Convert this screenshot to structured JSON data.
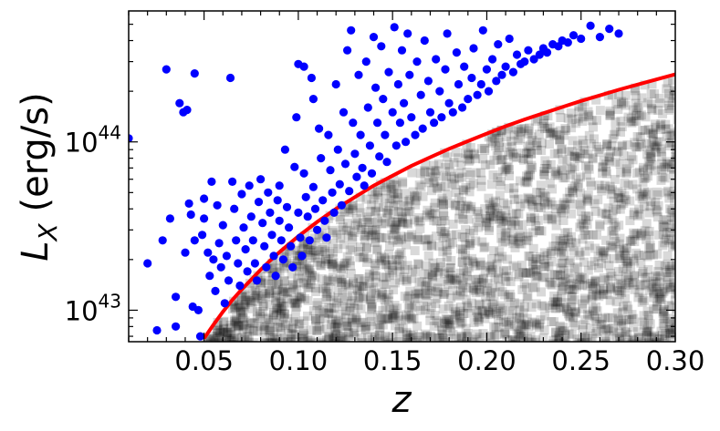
{
  "chart_data": {
    "type": "scatter",
    "title": "",
    "xlabel": "z",
    "ylabel": "L_X (erg/s)",
    "xlim": [
      0.01,
      0.3
    ],
    "ylim": [
      6.5e+42,
      6e+44
    ],
    "yscale": "log",
    "grid": false,
    "legend": "none",
    "x_ticks": [
      0.05,
      0.1,
      0.15,
      0.2,
      0.25,
      0.3
    ],
    "x_tick_labels": [
      "0.05",
      "0.10",
      "0.15",
      "0.20",
      "0.25",
      "0.30"
    ],
    "y_ticks": [
      1e+43,
      1e+44
    ],
    "y_tick_labels": [
      {
        "base": "10",
        "exp": "43"
      },
      {
        "base": "10",
        "exp": "44"
      }
    ],
    "series": [
      {
        "marker": "circle",
        "color": "#0000ff",
        "points": [
          [
            0.01,
            1.05e+44
          ],
          [
            0.02,
            1.9e+43
          ],
          [
            0.025,
            7.6e+42
          ],
          [
            0.028,
            2.6e+43
          ],
          [
            0.03,
            2.7e+44
          ],
          [
            0.032,
            3.5e+43
          ],
          [
            0.035,
            1.2e+43
          ],
          [
            0.035,
            8e+42
          ],
          [
            0.037,
            1.7e+44
          ],
          [
            0.039,
            1.5e+44
          ],
          [
            0.04,
            2.2e+43
          ],
          [
            0.041,
            1.55e+44
          ],
          [
            0.042,
            4.3e+43
          ],
          [
            0.043,
            3.7e+43
          ],
          [
            0.044,
            1.05e+43
          ],
          [
            0.045,
            2.55e+44
          ],
          [
            0.045,
            2.6e+43
          ],
          [
            0.047,
            1e+43
          ],
          [
            0.048,
            7e+42
          ],
          [
            0.049,
            2.8e+43
          ],
          [
            0.05,
            4.6e+43
          ],
          [
            0.05,
            3.5e+43
          ],
          [
            0.052,
            2.2e+43
          ],
          [
            0.053,
            1.6e+43
          ],
          [
            0.054,
            5.8e+43
          ],
          [
            0.055,
            2e+43
          ],
          [
            0.056,
            1.3e+43
          ],
          [
            0.057,
            4.2e+43
          ],
          [
            0.058,
            2.5e+43
          ],
          [
            0.059,
            1.8e+43
          ],
          [
            0.06,
            3.2e+43
          ],
          [
            0.061,
            1.1e+43
          ],
          [
            0.062,
            2.1e+43
          ],
          [
            0.063,
            1.5e+43
          ],
          [
            0.064,
            2.4e+44
          ],
          [
            0.065,
            5.8e+43
          ],
          [
            0.066,
            4e+43
          ],
          [
            0.067,
            2.6e+43
          ],
          [
            0.068,
            1.9e+43
          ],
          [
            0.069,
            1.4e+43
          ],
          [
            0.07,
            4.9e+43
          ],
          [
            0.071,
            3.1e+43
          ],
          [
            0.072,
            2.3e+43
          ],
          [
            0.073,
            1.7e+43
          ],
          [
            0.074,
            5.5e+43
          ],
          [
            0.075,
            3.6e+43
          ],
          [
            0.076,
            2.6e+43
          ],
          [
            0.077,
            1.9e+43
          ],
          [
            0.078,
            1.5e+43
          ],
          [
            0.079,
            4.4e+43
          ],
          [
            0.08,
            6e+43
          ],
          [
            0.081,
            3.3e+43
          ],
          [
            0.082,
            2.4e+43
          ],
          [
            0.083,
            1.8e+43
          ],
          [
            0.084,
            5e+43
          ],
          [
            0.085,
            3.8e+43
          ],
          [
            0.086,
            2.8e+43
          ],
          [
            0.087,
            2.1e+43
          ],
          [
            0.088,
            1.6e+43
          ],
          [
            0.089,
            4.5e+43
          ],
          [
            0.09,
            3.4e+43
          ],
          [
            0.09,
            5.5e+43
          ],
          [
            0.091,
            2.6e+43
          ],
          [
            0.092,
            2e+43
          ],
          [
            0.093,
            9e+43
          ],
          [
            0.094,
            4.1e+43
          ],
          [
            0.095,
            3.1e+43
          ],
          [
            0.096,
            2.4e+43
          ],
          [
            0.097,
            1.8e+43
          ],
          [
            0.098,
            7.1e+43
          ],
          [
            0.099,
            1.4e+44
          ],
          [
            0.1,
            3.8e+43
          ],
          [
            0.1,
            2.9e+44
          ],
          [
            0.101,
            2.7e+43
          ],
          [
            0.102,
            2.1e+43
          ],
          [
            0.103,
            6.5e+43
          ],
          [
            0.103,
            2.8e+44
          ],
          [
            0.104,
            4.7e+43
          ],
          [
            0.105,
            3.6e+43
          ],
          [
            0.106,
            2.6e+43
          ],
          [
            0.107,
            2.4e+44
          ],
          [
            0.108,
            1.8e+44
          ],
          [
            0.108,
            5.4e+43
          ],
          [
            0.109,
            4e+43
          ],
          [
            0.11,
            3e+43
          ],
          [
            0.111,
            1.2e+44
          ],
          [
            0.112,
            8e+43
          ],
          [
            0.113,
            4.5e+43
          ],
          [
            0.114,
            3.4e+43
          ],
          [
            0.115,
            2.7e+43
          ],
          [
            0.116,
            1.1e+44
          ],
          [
            0.117,
            6.8e+43
          ],
          [
            0.118,
            5e+43
          ],
          [
            0.119,
            3.8e+43
          ],
          [
            0.12,
            2.2e+44
          ],
          [
            0.121,
            9e+43
          ],
          [
            0.122,
            5.6e+43
          ],
          [
            0.123,
            4.2e+43
          ],
          [
            0.124,
            1.5e+44
          ],
          [
            0.125,
            7.4e+43
          ],
          [
            0.126,
            3.5e+44
          ],
          [
            0.127,
            5.1e+43
          ],
          [
            0.128,
            4.6e+44
          ],
          [
            0.129,
            1.3e+44
          ],
          [
            0.13,
            8.5e+43
          ],
          [
            0.131,
            6.2e+43
          ],
          [
            0.132,
            2.5e+44
          ],
          [
            0.133,
            1.1e+44
          ],
          [
            0.134,
            7e+43
          ],
          [
            0.135,
            5.5e+43
          ],
          [
            0.136,
            3e+44
          ],
          [
            0.137,
            1.6e+44
          ],
          [
            0.138,
            9.5e+43
          ],
          [
            0.139,
            6.5e+43
          ],
          [
            0.14,
            4.2e+44
          ],
          [
            0.141,
            2.1e+44
          ],
          [
            0.142,
            1.3e+44
          ],
          [
            0.143,
            8.2e+43
          ],
          [
            0.144,
            3.7e+44
          ],
          [
            0.145,
            1.8e+44
          ],
          [
            0.146,
            1.1e+44
          ],
          [
            0.147,
            7.6e+43
          ],
          [
            0.148,
            2.6e+44
          ],
          [
            0.15,
            1.5e+44
          ],
          [
            0.151,
            4.8e+44
          ],
          [
            0.152,
            9.5e+43
          ],
          [
            0.153,
            2.2e+44
          ],
          [
            0.154,
            1.3e+44
          ],
          [
            0.155,
            3.5e+44
          ],
          [
            0.156,
            1.7e+44
          ],
          [
            0.157,
            1e+44
          ],
          [
            0.158,
            4.4e+44
          ],
          [
            0.159,
            2.5e+44
          ],
          [
            0.16,
            1.4e+44
          ],
          [
            0.162,
            1.1e+44
          ],
          [
            0.163,
            3e+44
          ],
          [
            0.165,
            1.9e+44
          ],
          [
            0.166,
            1.2e+44
          ],
          [
            0.167,
            4e+44
          ],
          [
            0.169,
            2.3e+44
          ],
          [
            0.17,
            1.5e+44
          ],
          [
            0.172,
            1.3e+44
          ],
          [
            0.173,
            3.1e+44
          ],
          [
            0.175,
            2e+44
          ],
          [
            0.176,
            1.4e+44
          ],
          [
            0.178,
            2.7e+44
          ],
          [
            0.179,
            4.4e+44
          ],
          [
            0.18,
            1.7e+44
          ],
          [
            0.182,
            1.5e+44
          ],
          [
            0.184,
            3.4e+44
          ],
          [
            0.185,
            2.2e+44
          ],
          [
            0.187,
            1.6e+44
          ],
          [
            0.188,
            2.8e+44
          ],
          [
            0.19,
            1.8e+44
          ],
          [
            0.192,
            2.4e+44
          ],
          [
            0.193,
            3.6e+44
          ],
          [
            0.195,
            1.9e+44
          ],
          [
            0.197,
            2.2e+44
          ],
          [
            0.198,
            4.6e+44
          ],
          [
            0.2,
            2.7e+44
          ],
          [
            0.201,
            2e+44
          ],
          [
            0.203,
            3.1e+44
          ],
          [
            0.205,
            2.3e+44
          ],
          [
            0.206,
            3.8e+44
          ],
          [
            0.208,
            2.5e+44
          ],
          [
            0.21,
            2.8e+44
          ],
          [
            0.212,
            4.1e+44
          ],
          [
            0.214,
            2.6e+44
          ],
          [
            0.216,
            3.3e+44
          ],
          [
            0.218,
            2.9e+44
          ],
          [
            0.22,
            3e+44
          ],
          [
            0.222,
            3.5e+44
          ],
          [
            0.225,
            3.1e+44
          ],
          [
            0.228,
            3.3e+44
          ],
          [
            0.23,
            3.6e+44
          ],
          [
            0.232,
            3.4e+44
          ],
          [
            0.235,
            3.8e+44
          ],
          [
            0.238,
            3.7e+44
          ],
          [
            0.24,
            4e+44
          ],
          [
            0.243,
            3.9e+44
          ],
          [
            0.246,
            4.3e+44
          ],
          [
            0.25,
            4.1e+44
          ],
          [
            0.255,
            4.9e+44
          ],
          [
            0.26,
            4.2e+44
          ],
          [
            0.265,
            4.7e+44
          ],
          [
            0.27,
            4.4e+44
          ]
        ]
      },
      {
        "marker": "square",
        "color": "#000000",
        "opacity": 0.15,
        "description": "dense grey squares below the red curve"
      },
      {
        "marker": "line",
        "color": "#ff0000",
        "x": [
          0.05,
          0.055,
          0.06,
          0.065,
          0.07,
          0.075,
          0.08,
          0.085,
          0.09,
          0.095,
          0.1,
          0.11,
          0.12,
          0.13,
          0.14,
          0.15,
          0.16,
          0.17,
          0.18,
          0.19,
          0.2,
          0.21,
          0.22,
          0.23,
          0.24,
          0.25,
          0.26,
          0.27,
          0.28,
          0.29,
          0.3
        ],
        "y": [
          6.8e+42,
          8.2e+42,
          9.8e+42,
          1.15e+43,
          1.33e+43,
          1.52e+43,
          1.74e+43,
          1.97e+43,
          2.21e+43,
          2.47e+43,
          2.75e+43,
          3.35e+43,
          4e+43,
          4.7e+43,
          5.5e+43,
          6.3e+43,
          7.2e+43,
          8.1e+43,
          9.1e+43,
          1.01e+44,
          1.12e+44,
          1.24e+44,
          1.36e+44,
          1.48e+44,
          1.61e+44,
          1.75e+44,
          1.89e+44,
          2.04e+44,
          2.19e+44,
          2.35e+44,
          2.52e+44
        ]
      }
    ]
  }
}
